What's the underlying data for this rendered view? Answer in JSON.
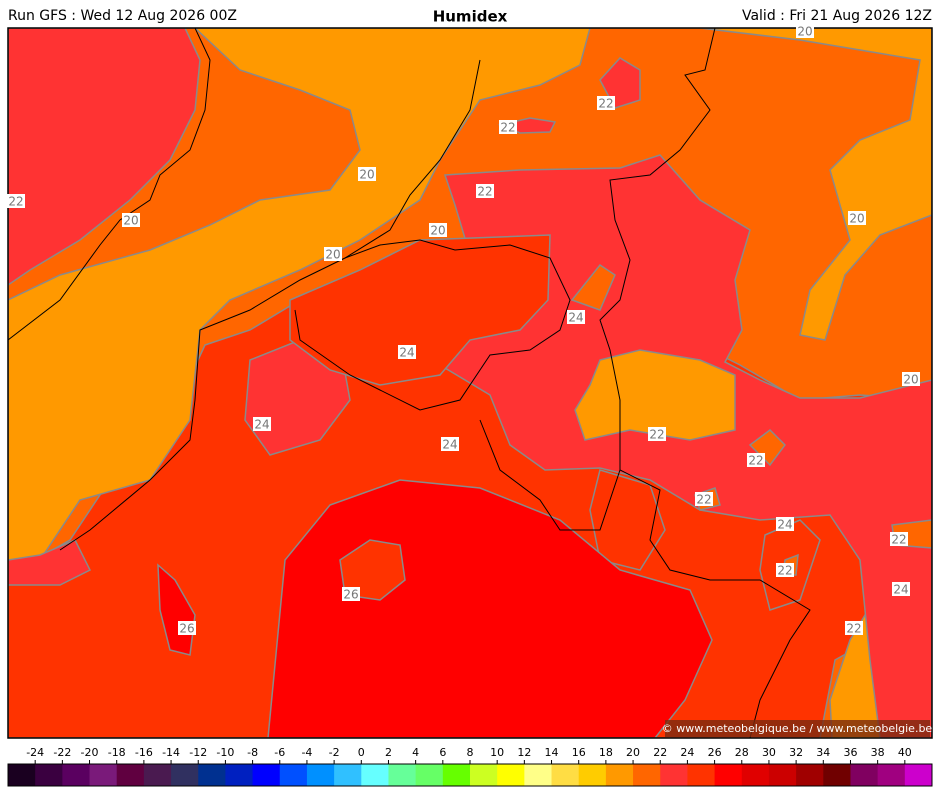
{
  "header": {
    "run": "Run GFS : Wed 12 Aug 2026 00Z",
    "title": "Humidex",
    "valid": "Valid : Fri 21 Aug 2026 12Z"
  },
  "map": {
    "contour_labels": [
      20,
      20,
      20,
      20,
      20,
      20,
      20,
      22,
      22,
      22,
      22,
      22,
      22,
      22,
      22,
      22,
      22,
      24,
      24,
      24,
      24,
      24,
      24,
      26,
      26
    ],
    "copyright": "© www.meteobelgique.be / www.meteobelgie.be"
  },
  "colorbar": {
    "ticks": [
      -24,
      -22,
      -20,
      -18,
      -16,
      -14,
      -12,
      -10,
      -8,
      -6,
      -4,
      -2,
      0,
      2,
      4,
      6,
      8,
      10,
      12,
      14,
      16,
      18,
      20,
      22,
      24,
      26,
      28,
      30,
      32,
      34,
      36,
      38,
      40
    ],
    "colors": [
      "#1a0020",
      "#3a0040",
      "#5a0060",
      "#7a1a7a",
      "#600040",
      "#4a1a50",
      "#303060",
      "#003090",
      "#0020c0",
      "#0000ff",
      "#0050ff",
      "#0090ff",
      "#30c0ff",
      "#66ffff",
      "#66ff99",
      "#66ff66",
      "#66ff00",
      "#ccff22",
      "#ffff00",
      "#ffff88",
      "#ffdd44",
      "#ffcc00",
      "#ff9900",
      "#ff6600",
      "#ff3333",
      "#ff3300",
      "#ff0000",
      "#e00000",
      "#cc0000",
      "#a00000",
      "#700000",
      "#800060",
      "#a00080",
      "#cc00cc"
    ]
  }
}
